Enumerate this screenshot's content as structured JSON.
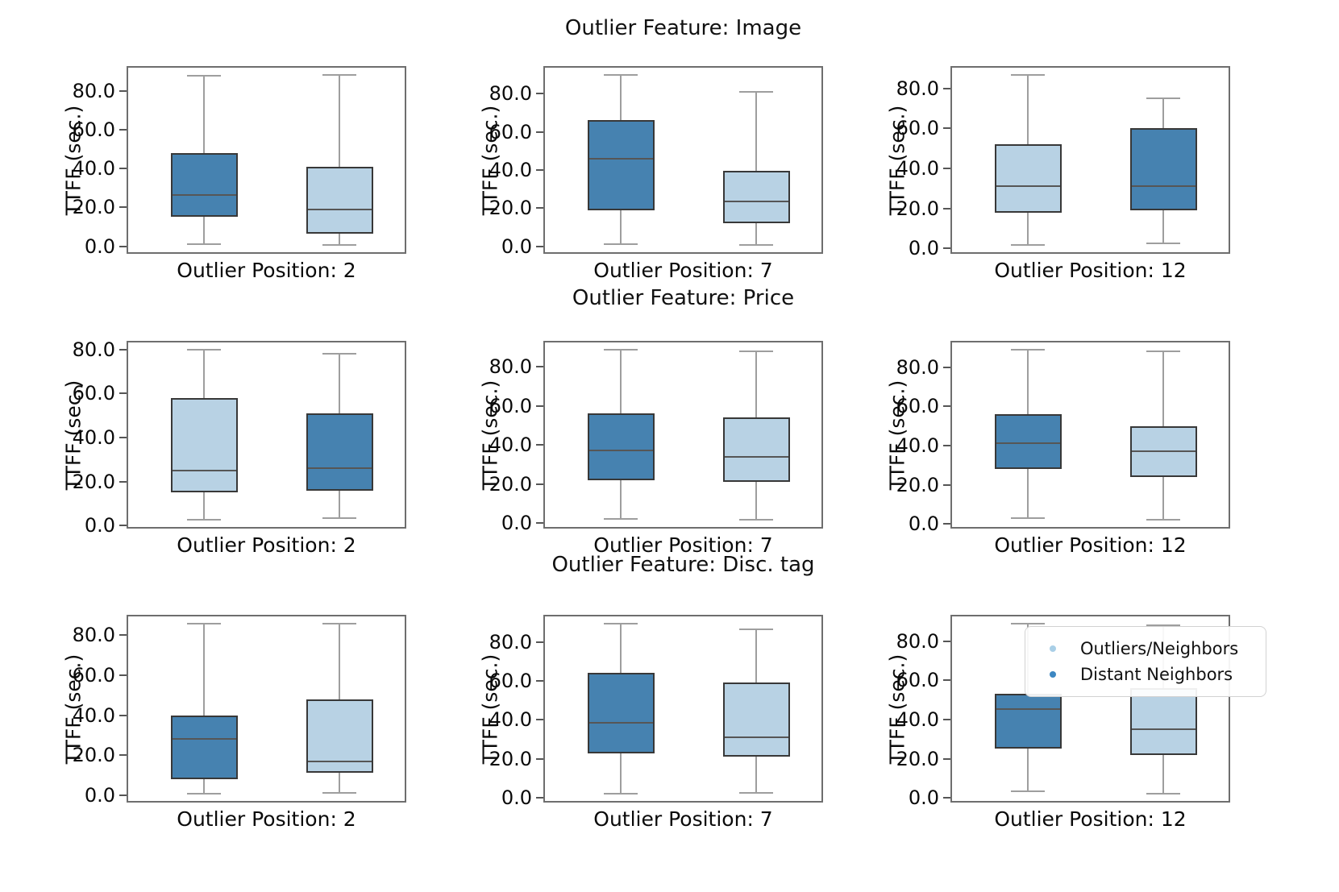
{
  "colors": {
    "dark_box_fill": "#4682b0",
    "light_box_fill": "#b8d2e4",
    "box_edge": "#383838",
    "median_line": "#565656",
    "whisker": "#9e9e9e",
    "axes_spine": "#6e6e6e",
    "tick": "#555555",
    "text": "#0a0a0a",
    "legend_marker_light": "#a9cfe7",
    "legend_marker_dark": "#3d87c2"
  },
  "legend": {
    "items": [
      {
        "label": "Outliers/Neighbors",
        "shade": "light"
      },
      {
        "label": "Distant Neighbors",
        "shade": "dark"
      }
    ]
  },
  "chart_data": {
    "type": "boxplot",
    "grid": "3 rows x 3 columns",
    "ylabel": "TTFF (sec.)",
    "yticks": [
      0,
      20,
      40,
      60,
      80
    ],
    "ytick_labels": [
      "0.0",
      "20.0",
      "40.0",
      "60.0",
      "80.0"
    ],
    "y_autoscale_margin": 0.05,
    "legend_location": "upper right of bottom-right subplot",
    "rows": [
      {
        "title": "Outlier Feature: Image",
        "subplots": [
          {
            "xlabel": "Outlier Position: 2",
            "boxes": [
              {
                "series": "Distant Neighbors",
                "shade": "dark",
                "whislo": 1.0,
                "q1": 15.0,
                "med": 26.5,
                "q3": 48.0,
                "whishi": 88.0
              },
              {
                "series": "Outliers/Neighbors",
                "shade": "light",
                "whislo": 0.5,
                "q1": 6.5,
                "med": 19.0,
                "q3": 41.0,
                "whishi": 88.5
              }
            ]
          },
          {
            "xlabel": "Outlier Position: 7",
            "boxes": [
              {
                "series": "Distant Neighbors",
                "shade": "dark",
                "whislo": 1.0,
                "q1": 19.0,
                "med": 46.0,
                "q3": 66.0,
                "whishi": 90.0
              },
              {
                "series": "Outliers/Neighbors",
                "shade": "light",
                "whislo": 0.5,
                "q1": 12.0,
                "med": 23.5,
                "q3": 39.5,
                "whishi": 81.0
              }
            ]
          },
          {
            "xlabel": "Outlier Position: 12",
            "boxes": [
              {
                "series": "Outliers/Neighbors",
                "shade": "light",
                "whislo": 1.5,
                "q1": 18.0,
                "med": 31.0,
                "q3": 52.0,
                "whishi": 87.0
              },
              {
                "series": "Distant Neighbors",
                "shade": "dark",
                "whislo": 2.5,
                "q1": 19.0,
                "med": 31.0,
                "q3": 60.0,
                "whishi": 75.0
              }
            ]
          }
        ]
      },
      {
        "title": "Outlier Feature: Price",
        "subplots": [
          {
            "xlabel": "Outlier Position: 2",
            "boxes": [
              {
                "series": "Outliers/Neighbors",
                "shade": "light",
                "whislo": 2.5,
                "q1": 15.0,
                "med": 25.0,
                "q3": 58.0,
                "whishi": 80.0
              },
              {
                "series": "Distant Neighbors",
                "shade": "dark",
                "whislo": 3.5,
                "q1": 16.0,
                "med": 26.0,
                "q3": 51.0,
                "whishi": 78.0
              }
            ]
          },
          {
            "xlabel": "Outlier Position: 7",
            "boxes": [
              {
                "series": "Distant Neighbors",
                "shade": "dark",
                "whislo": 2.0,
                "q1": 22.0,
                "med": 37.0,
                "q3": 56.0,
                "whishi": 89.0
              },
              {
                "series": "Outliers/Neighbors",
                "shade": "light",
                "whislo": 1.5,
                "q1": 21.0,
                "med": 34.0,
                "q3": 54.0,
                "whishi": 88.0
              }
            ]
          },
          {
            "xlabel": "Outlier Position: 12",
            "boxes": [
              {
                "series": "Distant Neighbors",
                "shade": "dark",
                "whislo": 3.0,
                "q1": 28.0,
                "med": 41.0,
                "q3": 56.0,
                "whishi": 89.0
              },
              {
                "series": "Outliers/Neighbors",
                "shade": "light",
                "whislo": 2.0,
                "q1": 24.0,
                "med": 37.0,
                "q3": 50.0,
                "whishi": 88.0
              }
            ]
          }
        ]
      },
      {
        "title": "Outlier Feature: Disc. tag",
        "subplots": [
          {
            "xlabel": "Outlier Position: 2",
            "boxes": [
              {
                "series": "Distant Neighbors",
                "shade": "dark",
                "whislo": 0.5,
                "q1": 8.0,
                "med": 28.0,
                "q3": 40.0,
                "whishi": 86.0
              },
              {
                "series": "Outliers/Neighbors",
                "shade": "light",
                "whislo": 1.0,
                "q1": 11.0,
                "med": 17.0,
                "q3": 48.0,
                "whishi": 86.0
              }
            ]
          },
          {
            "xlabel": "Outlier Position: 7",
            "boxes": [
              {
                "series": "Distant Neighbors",
                "shade": "dark",
                "whislo": 2.0,
                "q1": 23.0,
                "med": 38.5,
                "q3": 64.0,
                "whishi": 89.5
              },
              {
                "series": "Outliers/Neighbors",
                "shade": "light",
                "whislo": 2.5,
                "q1": 21.0,
                "med": 31.0,
                "q3": 59.0,
                "whishi": 86.5
              }
            ]
          },
          {
            "xlabel": "Outlier Position: 12",
            "boxes": [
              {
                "series": "Distant Neighbors",
                "shade": "dark",
                "whislo": 3.5,
                "q1": 25.0,
                "med": 45.5,
                "q3": 53.0,
                "whishi": 89.0
              },
              {
                "series": "Outliers/Neighbors",
                "shade": "light",
                "whislo": 2.0,
                "q1": 22.0,
                "med": 35.0,
                "q3": 56.0,
                "whishi": 88.0
              }
            ]
          }
        ]
      }
    ]
  }
}
